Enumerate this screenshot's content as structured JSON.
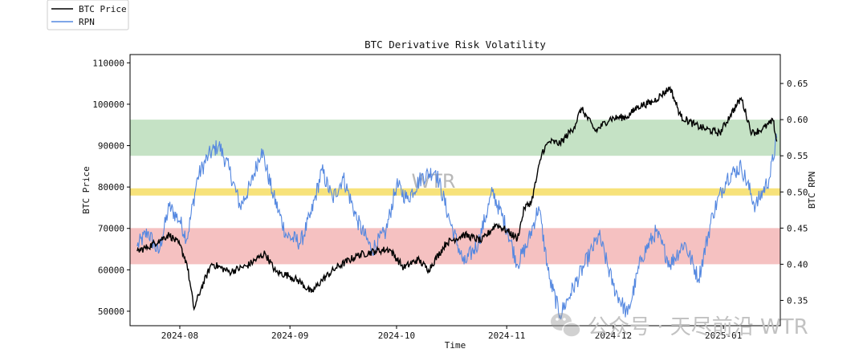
{
  "chart_data": {
    "type": "line",
    "title": "BTC Derivative Risk Volatility",
    "xlabel": "Time",
    "ylabel_left": "BTC Price",
    "ylabel_right": "BTC RPN",
    "x_ticks": [
      "2024-08",
      "2024-09",
      "2024-10",
      "2024-11",
      "2024-12",
      "2025-01"
    ],
    "x_range": [
      "2024-07-18",
      "2025-01-17"
    ],
    "y_left_ticks": [
      "50000",
      "60000",
      "70000",
      "80000",
      "90000",
      "100000",
      "110000"
    ],
    "y_left_lim": [
      46500,
      112000
    ],
    "y_right_ticks": [
      "0.35",
      "0.40",
      "0.45",
      "0.50",
      "0.55",
      "0.60",
      "0.65"
    ],
    "y_right_lim": [
      0.315,
      0.69
    ],
    "bands": [
      {
        "name": "high-risk-band",
        "y_from": 0.55,
        "y_to": 0.6,
        "color": "#c5e2c5"
      },
      {
        "name": "neutral-line-band",
        "y_from": 0.495,
        "y_to": 0.505,
        "color": "#f7e27a"
      },
      {
        "name": "low-risk-band",
        "y_from": 0.4,
        "y_to": 0.45,
        "color": "#f5c1c1"
      }
    ],
    "series": [
      {
        "name": "BTC Price",
        "axis": "left",
        "color": "#000000",
        "x": [
          "2024-07-20",
          "2024-07-23",
          "2024-07-26",
          "2024-07-29",
          "2024-08-01",
          "2024-08-03",
          "2024-08-05",
          "2024-08-07",
          "2024-08-10",
          "2024-08-15",
          "2024-08-20",
          "2024-08-25",
          "2024-08-28",
          "2024-09-01",
          "2024-09-04",
          "2024-09-07",
          "2024-09-10",
          "2024-09-14",
          "2024-09-20",
          "2024-09-25",
          "2024-09-29",
          "2024-10-03",
          "2024-10-07",
          "2024-10-10",
          "2024-10-15",
          "2024-10-20",
          "2024-10-25",
          "2024-10-29",
          "2024-11-01",
          "2024-11-04",
          "2024-11-06",
          "2024-11-08",
          "2024-11-11",
          "2024-11-13",
          "2024-11-16",
          "2024-11-20",
          "2024-11-22",
          "2024-11-26",
          "2024-11-30",
          "2024-12-05",
          "2024-12-08",
          "2024-12-12",
          "2024-12-17",
          "2024-12-20",
          "2024-12-24",
          "2024-12-27",
          "2024-12-31",
          "2025-01-03",
          "2025-01-06",
          "2025-01-09",
          "2025-01-12",
          "2025-01-15",
          "2025-01-16"
        ],
        "values": [
          64500,
          65500,
          67000,
          68500,
          66000,
          61500,
          50500,
          55500,
          61500,
          59500,
          61000,
          64000,
          59500,
          58500,
          57000,
          54500,
          57500,
          60500,
          63500,
          64500,
          65000,
          60500,
          62500,
          60000,
          66500,
          68500,
          67000,
          71000,
          69500,
          67500,
          75000,
          76500,
          88500,
          91000,
          90500,
          94500,
          99000,
          93500,
          96500,
          97000,
          99500,
          100500,
          104000,
          97000,
          95000,
          94000,
          93000,
          97500,
          101500,
          93000,
          94000,
          96000,
          91000
        ]
      },
      {
        "name": "RPN",
        "axis": "right",
        "color": "#5588e0",
        "x": [
          "2024-07-20",
          "2024-07-23",
          "2024-07-26",
          "2024-07-29",
          "2024-08-01",
          "2024-08-03",
          "2024-08-06",
          "2024-08-09",
          "2024-08-12",
          "2024-08-15",
          "2024-08-18",
          "2024-08-21",
          "2024-08-24",
          "2024-08-27",
          "2024-08-31",
          "2024-09-04",
          "2024-09-07",
          "2024-09-10",
          "2024-09-13",
          "2024-09-16",
          "2024-09-20",
          "2024-09-24",
          "2024-09-28",
          "2024-10-01",
          "2024-10-04",
          "2024-10-08",
          "2024-10-12",
          "2024-10-16",
          "2024-10-20",
          "2024-10-24",
          "2024-10-28",
          "2024-11-01",
          "2024-11-04",
          "2024-11-07",
          "2024-11-10",
          "2024-11-13",
          "2024-11-16",
          "2024-11-19",
          "2024-11-23",
          "2024-11-27",
          "2024-12-01",
          "2024-12-05",
          "2024-12-09",
          "2024-12-13",
          "2024-12-17",
          "2024-12-21",
          "2024-12-25",
          "2024-12-29",
          "2025-01-02",
          "2025-01-06",
          "2025-01-10",
          "2025-01-14",
          "2025-01-16"
        ],
        "values": [
          0.425,
          0.445,
          0.415,
          0.48,
          0.46,
          0.435,
          0.52,
          0.55,
          0.565,
          0.53,
          0.48,
          0.51,
          0.56,
          0.5,
          0.44,
          0.43,
          0.47,
          0.53,
          0.49,
          0.52,
          0.46,
          0.42,
          0.445,
          0.51,
          0.49,
          0.52,
          0.53,
          0.46,
          0.4,
          0.43,
          0.5,
          0.45,
          0.4,
          0.43,
          0.48,
          0.38,
          0.33,
          0.36,
          0.4,
          0.44,
          0.37,
          0.33,
          0.41,
          0.445,
          0.4,
          0.43,
          0.38,
          0.47,
          0.52,
          0.535,
          0.48,
          0.52,
          0.575
        ]
      }
    ],
    "legend": {
      "position": "top-left",
      "entries": [
        "BTC Price",
        "RPN"
      ]
    }
  },
  "watermarks": {
    "center_text": "WTR",
    "bottom_text": "公众号 · 天尽前沿 WTR"
  }
}
